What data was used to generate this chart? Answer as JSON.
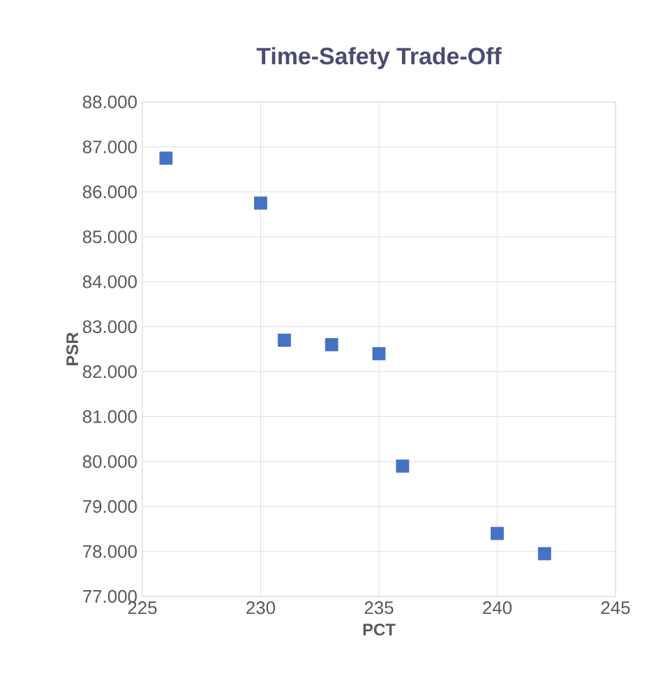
{
  "chart_data": {
    "type": "scatter",
    "title": "Time-Safety Trade-Off",
    "xlabel": "PCT",
    "ylabel": "PSR",
    "x": [
      226,
      230,
      231,
      233,
      235,
      236,
      240,
      242
    ],
    "values": [
      86.75,
      85.75,
      82.7,
      82.6,
      82.4,
      79.9,
      78.4,
      77.95
    ],
    "color": "#4472c4",
    "marker": "square",
    "grid": true,
    "xlim": [
      225,
      245
    ],
    "xticks": [
      225,
      230,
      235,
      240,
      245
    ],
    "ylim": [
      77,
      88
    ],
    "yticks": [
      {
        "value": 77,
        "label": "77.000"
      },
      {
        "value": 78,
        "label": "78.000"
      },
      {
        "value": 79,
        "label": "79.000"
      },
      {
        "value": 80,
        "label": "80.000"
      },
      {
        "value": 81,
        "label": "81.000"
      },
      {
        "value": 82,
        "label": "82.000"
      },
      {
        "value": 83,
        "label": "83.000"
      },
      {
        "value": 84,
        "label": "84.000"
      },
      {
        "value": 85,
        "label": "85.000"
      },
      {
        "value": 86,
        "label": "86.000"
      },
      {
        "value": 87,
        "label": "87.000"
      },
      {
        "value": 88,
        "label": "88.000"
      }
    ]
  }
}
